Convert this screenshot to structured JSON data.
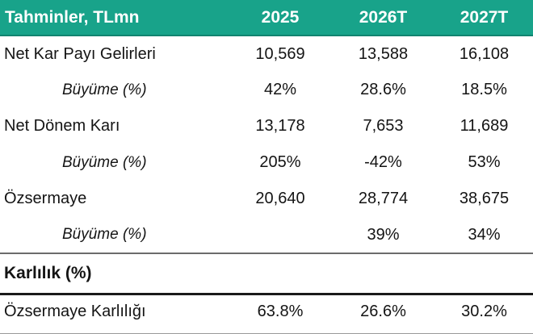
{
  "chart_data": {
    "type": "table",
    "title": "Tahminler, TLmn",
    "columns": [
      "2025",
      "2026T",
      "2027T"
    ],
    "rows": [
      {
        "label": "Net Kar Payı Gelirleri",
        "kind": "metric",
        "values": [
          "10,569",
          "13,588",
          "16,108"
        ]
      },
      {
        "label": "Büyüme (%)",
        "kind": "growth",
        "values": [
          "42%",
          "28.6%",
          "18.5%"
        ]
      },
      {
        "label": "Net Dönem Karı",
        "kind": "metric",
        "values": [
          "13,178",
          "7,653",
          "11,689"
        ]
      },
      {
        "label": "Büyüme (%)",
        "kind": "growth",
        "values": [
          "205%",
          "-42%",
          "53%"
        ]
      },
      {
        "label": "Özsermaye",
        "kind": "metric",
        "values": [
          "20,640",
          "28,774",
          "38,675"
        ]
      },
      {
        "label": "Büyüme (%)",
        "kind": "growth",
        "values": [
          "",
          "39%",
          "34%"
        ]
      },
      {
        "label": "Karlılık (%)",
        "kind": "section",
        "values": [
          "",
          "",
          ""
        ]
      },
      {
        "label": "Özsermaye Karlılığı",
        "kind": "metric",
        "values": [
          "63.8%",
          "26.6%",
          "30.2%"
        ]
      }
    ]
  },
  "theme": {
    "header_bg": "#18A38A",
    "header_bg_edge": "#128370",
    "header_text": "#FFFFFF",
    "body_text": "#141414",
    "section_rule_top": "#6B6B6B",
    "section_rule_bottom": "#1A1A1A",
    "bottom_edge": "#9A9A9A"
  }
}
